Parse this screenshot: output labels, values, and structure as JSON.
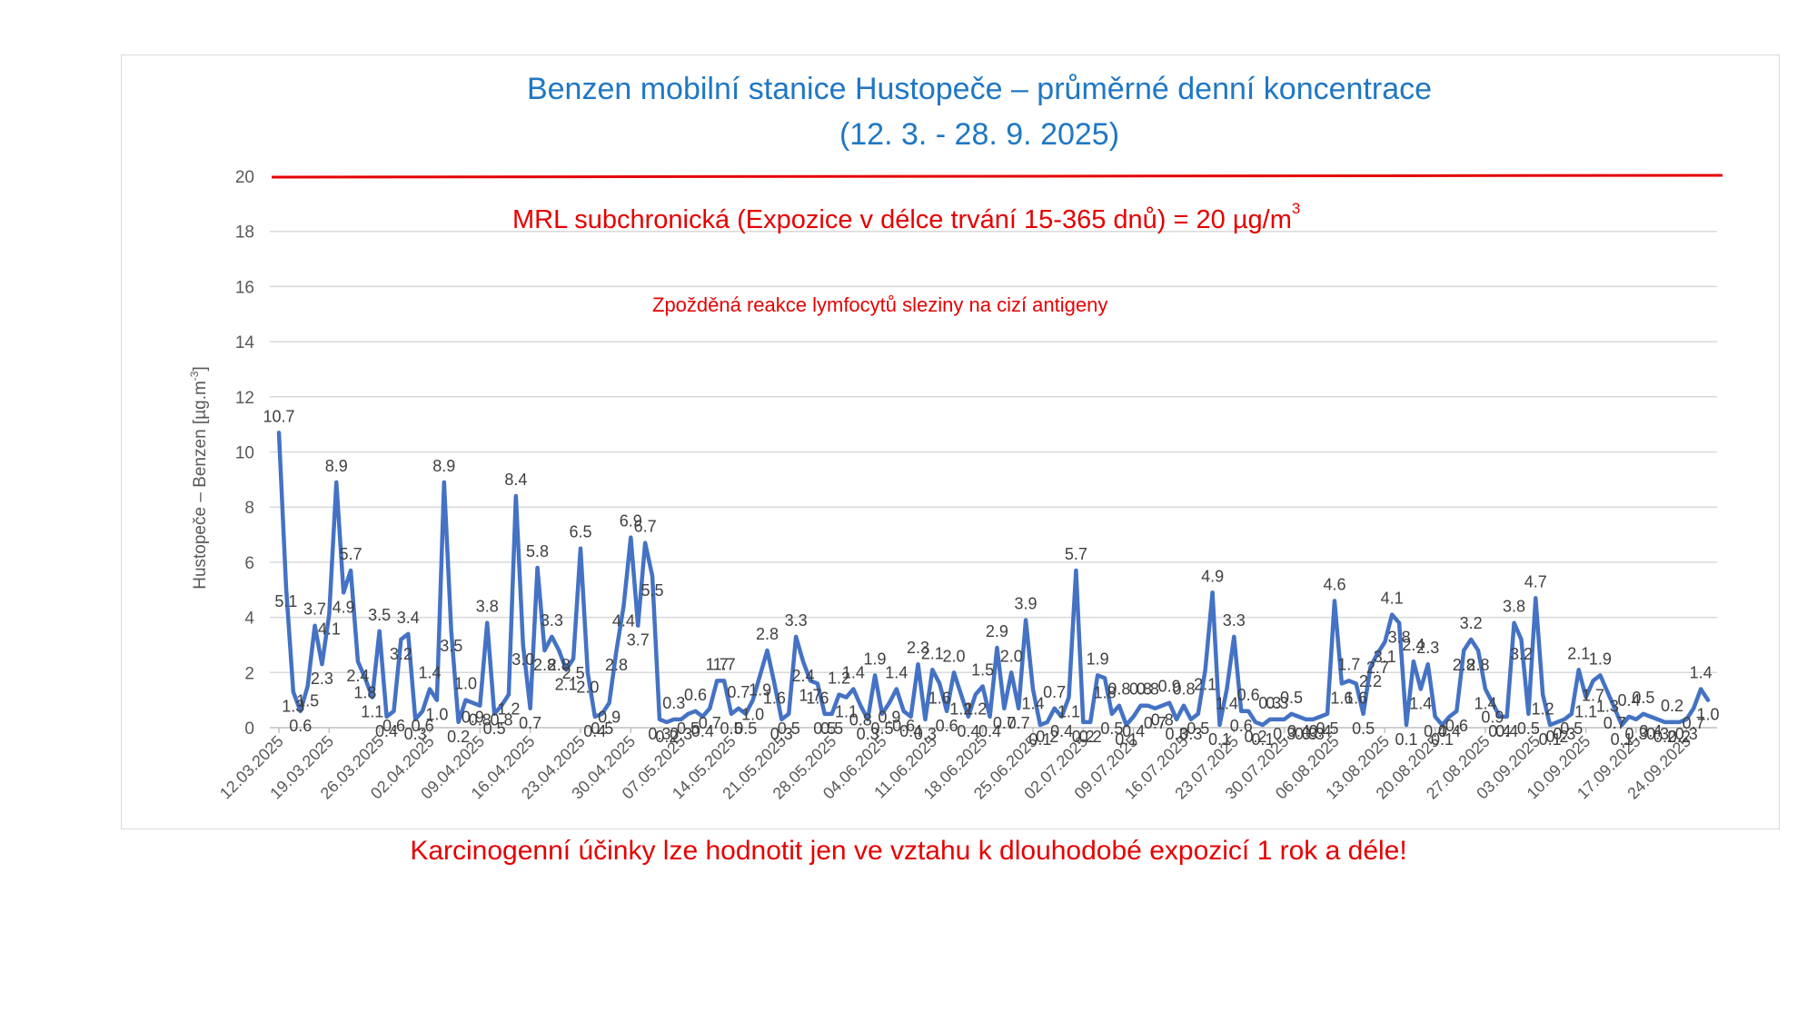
{
  "chart_data": {
    "type": "line",
    "title_lines": [
      "Benzen mobilní stanice Hustopeče – průměrné denní koncentrace",
      "(12. 3. - 28. 9. 2025)"
    ],
    "ylabel_prefix": "Hustopeče – Benzen  [µg.m",
    "ylabel_sup": "-3",
    "ylabel_suffix": "]",
    "ylim": [
      0,
      20
    ],
    "ytick_step": 2,
    "grid": true,
    "x_tick_labels": [
      "12.03.2025",
      "19.03.2025",
      "26.03.2025",
      "02.04.2025",
      "09.04.2025",
      "16.04.2025",
      "23.04.2025",
      "30.04.2025",
      "07.05.2025",
      "14.05.2025",
      "21.05.2025",
      "28.05.2025",
      "04.06.2025",
      "11.06.2025",
      "18.06.2025",
      "25.06.2025",
      "02.07.2025",
      "09.07.2025",
      "16.07.2025",
      "23.07.2025",
      "30.07.2025",
      "06.08.2025",
      "13.08.2025",
      "20.08.2025",
      "27.08.2025",
      "03.09.2025",
      "10.09.2025",
      "17.09.2025",
      "24.09.2025"
    ],
    "x_start": "12.03.2025",
    "x_end": "28.09.2025",
    "series": [
      {
        "color": "#4472c4",
        "values": [
          10.7,
          5.1,
          1.3,
          0.6,
          1.5,
          3.7,
          2.3,
          4.1,
          8.9,
          4.9,
          5.7,
          2.4,
          1.8,
          1.1,
          3.5,
          0.4,
          0.6,
          3.2,
          3.4,
          0.3,
          0.6,
          1.4,
          1.0,
          8.9,
          3.5,
          0.2,
          1.0,
          0.9,
          0.8,
          3.8,
          0.5,
          0.8,
          1.2,
          8.4,
          3.0,
          0.7,
          5.8,
          2.8,
          3.3,
          2.8,
          2.1,
          2.5,
          6.5,
          2.0,
          0.4,
          0.5,
          0.9,
          2.8,
          4.4,
          6.9,
          3.7,
          6.7,
          5.5,
          0.3,
          0.2,
          0.3,
          0.3,
          0.5,
          0.6,
          0.4,
          0.7,
          1.7,
          1.7,
          0.5,
          0.7,
          0.5,
          1.0,
          1.9,
          2.8,
          1.6,
          0.3,
          0.5,
          3.3,
          2.4,
          1.7,
          1.6,
          0.5,
          0.5,
          1.2,
          1.1,
          1.4,
          0.8,
          0.3,
          1.9,
          0.5,
          0.9,
          1.4,
          0.6,
          0.4,
          2.3,
          0.3,
          2.1,
          1.6,
          0.6,
          2.0,
          1.2,
          0.4,
          1.2,
          1.5,
          0.4,
          2.9,
          0.7,
          2.0,
          0.7,
          3.9,
          1.4,
          0.1,
          0.2,
          0.7,
          0.4,
          1.1,
          5.7,
          0.2,
          0.2,
          1.9,
          1.8,
          0.5,
          0.8,
          0.1,
          0.4,
          0.8,
          0.8,
          0.7,
          0.8,
          0.9,
          0.3,
          0.8,
          0.3,
          0.5,
          2.1,
          4.9,
          0.1,
          1.4,
          3.3,
          0.6,
          0.6,
          0.2,
          0.1,
          0.3,
          0.3,
          0.3,
          0.5,
          0.4,
          0.3,
          0.3,
          0.4,
          0.5,
          4.6,
          1.6,
          1.7,
          1.6,
          0.5,
          2.2,
          2.7,
          3.1,
          4.1,
          3.8,
          0.1,
          2.4,
          1.4,
          2.3,
          0.4,
          0.1,
          0.4,
          0.6,
          2.8,
          3.2,
          2.8,
          1.4,
          0.9,
          0.4,
          0.4,
          3.8,
          3.2,
          0.5,
          4.7,
          1.2,
          0.1,
          0.2,
          0.3,
          0.5,
          2.1,
          1.1,
          1.7,
          1.9,
          1.3,
          0.7,
          0.1,
          0.4,
          0.3,
          0.5,
          0.4,
          0.3,
          0.2,
          0.2,
          0.2,
          0.3,
          0.7,
          1.4,
          1.0
        ]
      }
    ],
    "reference_line": {
      "value": 20,
      "color": "#e50000"
    },
    "annotations": [
      {
        "main": "MRL subchronická (Expozice v délce trvání 15-365 dnů) = 20 µg/m",
        "sup": "3",
        "color": "#e50000"
      },
      {
        "main": "Zpožděná reakce lymfocytů sleziny na cizí antigeny",
        "color": "#e50000"
      }
    ],
    "title_color": "#1f77c4"
  },
  "footer_note": "Karcinogenní účinky lze hodnotit jen ve vztahu k dlouhodobé expozicí 1 rok a déle!"
}
